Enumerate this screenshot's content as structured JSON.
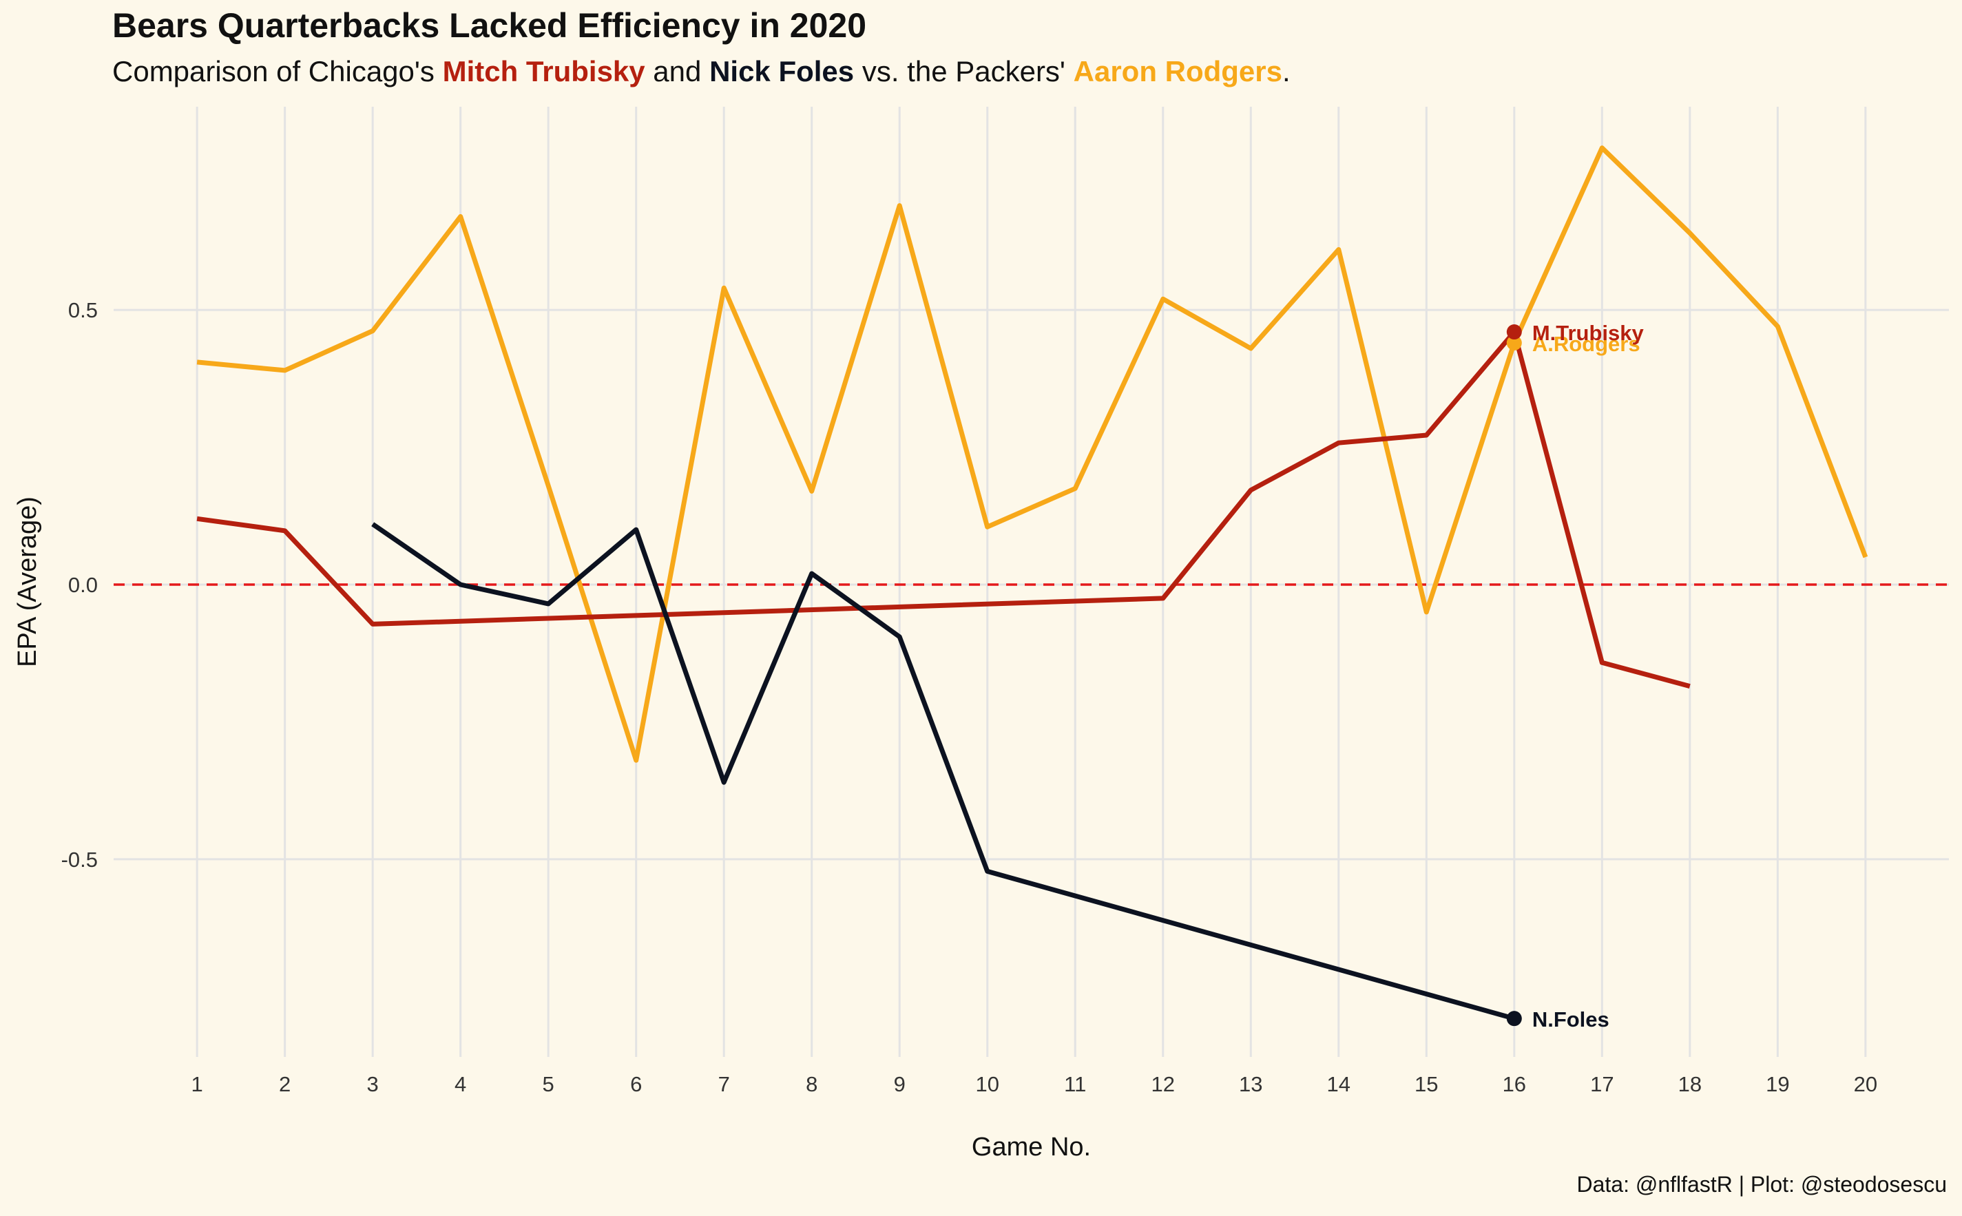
{
  "title": "Bears Quarterbacks Lacked Efficiency in 2020",
  "subtitle": {
    "prefix": "Comparison of Chicago's ",
    "name1": "Mitch Trubisky",
    "mid1": " and ",
    "name2": "Nick Foles",
    "mid2": " vs. the Packers' ",
    "name3": "Aaron Rodgers",
    "suffix": "."
  },
  "caption": "Data: @nflfastR | Plot: @steodosescu",
  "chart_data": {
    "type": "line",
    "xlabel": "Game No.",
    "ylabel": "EPA (Average)",
    "xlim": [
      0.05,
      20.95
    ],
    "ylim": [
      -0.86,
      0.87
    ],
    "x_ticks": [
      1,
      2,
      3,
      4,
      5,
      6,
      7,
      8,
      9,
      10,
      11,
      12,
      13,
      14,
      15,
      16,
      17,
      18,
      19,
      20
    ],
    "y_ticks": [
      -0.5,
      0.0,
      0.5
    ],
    "y_tick_labels": [
      "-0.5",
      "0.0",
      "0.5"
    ],
    "grid": true,
    "reference_line": {
      "y": 0,
      "style": "dashed",
      "color": "#e41a1c"
    },
    "series": [
      {
        "key": "rodgers",
        "name": "A.Rodgers",
        "color": "#f7a819",
        "x": [
          1,
          2,
          3,
          4,
          5,
          6,
          7,
          8,
          9,
          10,
          11,
          12,
          13,
          14,
          15,
          16,
          17,
          18,
          19,
          20
        ],
        "y": [
          0.405,
          0.39,
          0.462,
          0.67,
          0.18,
          -0.32,
          0.54,
          0.17,
          0.69,
          0.105,
          0.175,
          0.52,
          0.43,
          0.61,
          -0.05,
          0.44,
          0.795,
          0.64,
          0.47,
          0.05
        ],
        "end_label": "A.Rodgers",
        "end_x": 16
      },
      {
        "key": "trubisky",
        "name": "M.Trubisky",
        "color": "#b5200f",
        "x": [
          1,
          2,
          3,
          12,
          13,
          14,
          15,
          16,
          17,
          18
        ],
        "y": [
          0.12,
          0.098,
          -0.072,
          -0.025,
          0.172,
          0.258,
          0.272,
          0.46,
          -0.142,
          -0.185
        ],
        "end_label": "M.Trubisky",
        "end_x": 16
      },
      {
        "key": "foles",
        "name": "N.Foles",
        "color": "#0c1220",
        "x": [
          3,
          4,
          5,
          6,
          7,
          8,
          9,
          10,
          16
        ],
        "y": [
          0.11,
          0.0,
          -0.035,
          0.1,
          -0.36,
          0.02,
          -0.095,
          -0.522,
          -0.79
        ],
        "end_label": "N.Foles",
        "end_x": 16
      }
    ]
  }
}
